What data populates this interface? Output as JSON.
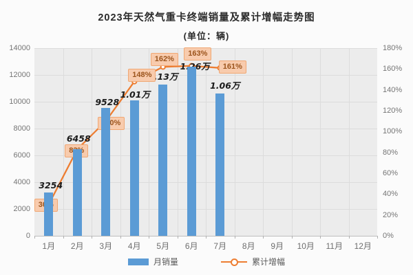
{
  "title": "2023年天然气重卡终端销量及累计增幅走势图",
  "subtitle": "(单位：辆)",
  "colors": {
    "bar": "#5b9bd5",
    "line": "#ed7d31",
    "callout_bg": "#f8cbad",
    "callout_border": "#f0a773",
    "callout_text": "#9b541c",
    "plot_bg": "#ececec",
    "grid": "#dcdcdc"
  },
  "chart_data": {
    "type": "combo",
    "title": "2023年天然气重卡终端销量及累计增幅走势图",
    "subtitle": "(单位：辆)",
    "categories": [
      "1月",
      "2月",
      "3月",
      "4月",
      "5月",
      "6月",
      "7月",
      "8月",
      "9月",
      "10月",
      "11月",
      "12月"
    ],
    "series": [
      {
        "name": "月销量",
        "type": "bar",
        "color": "#5b9bd5",
        "values": [
          3254,
          6458,
          9528,
          10100,
          11300,
          12600,
          10600,
          null,
          null,
          null,
          null,
          null
        ],
        "labels": [
          "3254",
          "6458",
          "9528",
          "1.01万",
          "1.13万",
          "1.26万",
          "1.06万"
        ]
      },
      {
        "name": "累计增幅",
        "type": "line",
        "color": "#ed7d31",
        "values": [
          30,
          83,
          110,
          148,
          162,
          163,
          161,
          null,
          null,
          null,
          null,
          null
        ],
        "labels": [
          "30%",
          "83%",
          "110%",
          "148%",
          "162%",
          "163%",
          "161%"
        ]
      }
    ],
    "axes": {
      "left": {
        "min": 0,
        "max": 14000,
        "step": 2000,
        "ticks": [
          "0",
          "2000",
          "4000",
          "6000",
          "8000",
          "10000",
          "12000",
          "14000"
        ]
      },
      "right": {
        "min": 0,
        "max": 180,
        "step": 20,
        "ticks": [
          "0%",
          "20%",
          "40%",
          "60%",
          "80%",
          "100%",
          "120%",
          "140%",
          "160%",
          "180%"
        ]
      }
    },
    "legend": [
      "月销量",
      "累计增幅"
    ],
    "grid": true,
    "legend_position": "bottom"
  }
}
